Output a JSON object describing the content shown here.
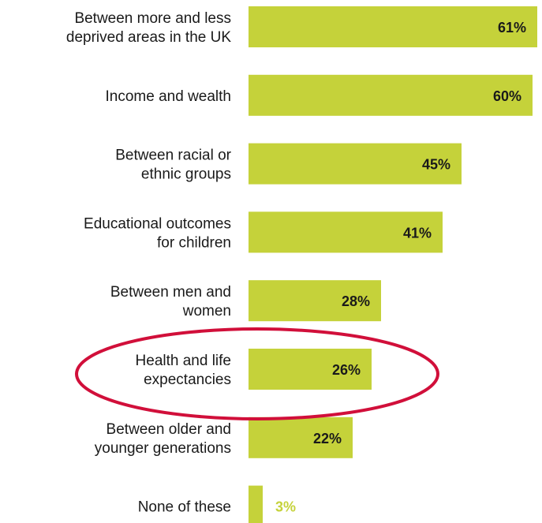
{
  "chart_data": {
    "type": "bar",
    "orientation": "horizontal",
    "categories": [
      [
        "Between more and less",
        "deprived areas in the UK"
      ],
      [
        "Income and wealth"
      ],
      [
        "Between racial or",
        "ethnic groups"
      ],
      [
        "Educational outcomes",
        "for children"
      ],
      [
        "Between men and",
        "women"
      ],
      [
        "Health and life",
        "expectancies"
      ],
      [
        "Between older and",
        "younger generations"
      ],
      [
        "None of these"
      ]
    ],
    "values": [
      61,
      60,
      45,
      41,
      28,
      26,
      22,
      3
    ],
    "value_labels": [
      "61%",
      "60%",
      "45%",
      "41%",
      "28%",
      "26%",
      "22%",
      "3%"
    ],
    "unit": "%",
    "xlim": [
      0,
      62
    ],
    "grid": false,
    "highlighted_category_index": 5
  },
  "colors": {
    "bar": "#c5d23a",
    "value_label_inside": "#1a1a1a",
    "value_label_outside": "#c5d23a",
    "highlight_ellipse": "#d10f3a",
    "category_text": "#1a1a1a"
  }
}
